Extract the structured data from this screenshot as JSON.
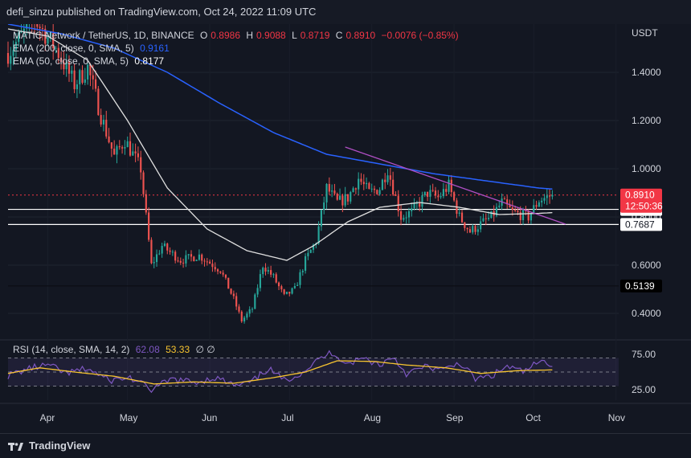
{
  "header": {
    "publisher": "defi_sinzu published on TradingView.com, Oct 24, 2022 11:09 UTC"
  },
  "legend": {
    "symbol": "MATIC Network / TetherUS, 1D, BINANCE",
    "open_label": "O",
    "open": "0.8986",
    "high_label": "H",
    "high": "0.9088",
    "low_label": "L",
    "low": "0.8719",
    "close_label": "C",
    "close": "0.8910",
    "change": "−0.0076 (−0.85%)",
    "ema200_label": "EMA (200, close, 0, SMA, 5)",
    "ema200_value": "0.9161",
    "ema50_label": "EMA (50, close, 0, SMA, 5)",
    "ema50_value": "0.8177",
    "rsi_label": "RSI (14, close, SMA, 14, 2)",
    "rsi_value": "62.08",
    "rsi_sma_value": "53.33",
    "rsi_extra": "∅ ∅"
  },
  "footer": {
    "brand": "TradingView"
  },
  "colors": {
    "background": "#131722",
    "up": "#26a69a",
    "down": "#ef5350",
    "ema200": "#2962ff",
    "ema50": "#e0e0e0",
    "trendline": "#b04fc4",
    "rsi": "#7e57c2",
    "rsi_sma": "#f7c430",
    "price_tag": "#f23645"
  },
  "chart_data": {
    "type": "candlestick",
    "currency_label": "USDT",
    "price_axis": {
      "min": 0.3,
      "max": 1.6,
      "ticks": [
        "1.4000",
        "1.2000",
        "1.0000",
        "0.8000",
        "0.6000",
        "0.4000"
      ]
    },
    "time_axis": {
      "labels": [
        "Apr",
        "May",
        "Jun",
        "Jul",
        "Aug",
        "Sep",
        "Oct",
        "Nov"
      ]
    },
    "anchors": [
      {
        "d": 0,
        "p": 1.48
      },
      {
        "d": 5,
        "p": 1.55
      },
      {
        "d": 10,
        "p": 1.62
      },
      {
        "d": 18,
        "p": 1.5
      },
      {
        "d": 25,
        "p": 1.35
      },
      {
        "d": 30,
        "p": 1.42
      },
      {
        "d": 35,
        "p": 1.22
      },
      {
        "d": 40,
        "p": 1.05
      },
      {
        "d": 44,
        "p": 1.12
      },
      {
        "d": 50,
        "p": 1.0
      },
      {
        "d": 54,
        "p": 0.6
      },
      {
        "d": 58,
        "p": 0.68
      },
      {
        "d": 65,
        "p": 0.62
      },
      {
        "d": 72,
        "p": 0.64
      },
      {
        "d": 80,
        "p": 0.58
      },
      {
        "d": 85,
        "p": 0.46
      },
      {
        "d": 88,
        "p": 0.37
      },
      {
        "d": 92,
        "p": 0.42
      },
      {
        "d": 96,
        "p": 0.6
      },
      {
        "d": 100,
        "p": 0.55
      },
      {
        "d": 104,
        "p": 0.47
      },
      {
        "d": 108,
        "p": 0.5
      },
      {
        "d": 112,
        "p": 0.62
      },
      {
        "d": 116,
        "p": 0.7
      },
      {
        "d": 120,
        "p": 0.92
      },
      {
        "d": 124,
        "p": 0.86
      },
      {
        "d": 128,
        "p": 0.88
      },
      {
        "d": 132,
        "p": 0.96
      },
      {
        "d": 136,
        "p": 0.9
      },
      {
        "d": 140,
        "p": 0.92
      },
      {
        "d": 143,
        "p": 1.0
      },
      {
        "d": 148,
        "p": 0.8
      },
      {
        "d": 152,
        "p": 0.82
      },
      {
        "d": 158,
        "p": 0.9
      },
      {
        "d": 162,
        "p": 0.88
      },
      {
        "d": 166,
        "p": 0.93
      },
      {
        "d": 170,
        "p": 0.8
      },
      {
        "d": 174,
        "p": 0.74
      },
      {
        "d": 178,
        "p": 0.77
      },
      {
        "d": 182,
        "p": 0.8
      },
      {
        "d": 186,
        "p": 0.86
      },
      {
        "d": 190,
        "p": 0.82
      },
      {
        "d": 196,
        "p": 0.8
      },
      {
        "d": 200,
        "p": 0.87
      },
      {
        "d": 205,
        "p": 0.891
      }
    ],
    "ema200_points": [
      {
        "d": 0,
        "p": 1.6
      },
      {
        "d": 20,
        "p": 1.56
      },
      {
        "d": 40,
        "p": 1.5
      },
      {
        "d": 60,
        "p": 1.4
      },
      {
        "d": 80,
        "p": 1.27
      },
      {
        "d": 100,
        "p": 1.15
      },
      {
        "d": 120,
        "p": 1.06
      },
      {
        "d": 140,
        "p": 1.02
      },
      {
        "d": 160,
        "p": 0.98
      },
      {
        "d": 180,
        "p": 0.95
      },
      {
        "d": 200,
        "p": 0.92
      },
      {
        "d": 205,
        "p": 0.916
      }
    ],
    "ema50_points": [
      {
        "d": 0,
        "p": 1.58
      },
      {
        "d": 15,
        "p": 1.55
      },
      {
        "d": 30,
        "p": 1.45
      },
      {
        "d": 45,
        "p": 1.2
      },
      {
        "d": 60,
        "p": 0.92
      },
      {
        "d": 75,
        "p": 0.75
      },
      {
        "d": 90,
        "p": 0.66
      },
      {
        "d": 105,
        "p": 0.62
      },
      {
        "d": 115,
        "p": 0.68
      },
      {
        "d": 128,
        "p": 0.78
      },
      {
        "d": 140,
        "p": 0.84
      },
      {
        "d": 155,
        "p": 0.86
      },
      {
        "d": 170,
        "p": 0.84
      },
      {
        "d": 185,
        "p": 0.81
      },
      {
        "d": 200,
        "p": 0.815
      },
      {
        "d": 205,
        "p": 0.818
      }
    ],
    "trendline": [
      {
        "d": 127,
        "p": 1.09
      },
      {
        "d": 210,
        "p": 0.77
      }
    ],
    "horizontal_levels": [
      {
        "price": 0.8314,
        "label": "0.8314",
        "color": "#ffffff",
        "dashed": false
      },
      {
        "price": 0.7687,
        "label": "0.7687",
        "color": "#ffffff",
        "dashed": false
      },
      {
        "price": 0.5139,
        "label": "0.5139",
        "color": "#000000",
        "dashed": false
      },
      {
        "price": 0.891,
        "label": "0.8910",
        "color": "#f23645",
        "dashed": true
      }
    ],
    "countdown": "12:50:36",
    "rsi": {
      "min": 10,
      "max": 90,
      "ticks": [
        "75.00",
        "25.00"
      ],
      "band_upper": 70,
      "band_lower": 30,
      "mid": 50,
      "anchors": [
        {
          "d": 0,
          "v": 45
        },
        {
          "d": 8,
          "v": 55
        },
        {
          "d": 15,
          "v": 60
        },
        {
          "d": 22,
          "v": 48
        },
        {
          "d": 30,
          "v": 55
        },
        {
          "d": 38,
          "v": 38
        },
        {
          "d": 46,
          "v": 42
        },
        {
          "d": 54,
          "v": 25
        },
        {
          "d": 62,
          "v": 40
        },
        {
          "d": 70,
          "v": 35
        },
        {
          "d": 78,
          "v": 42
        },
        {
          "d": 86,
          "v": 30
        },
        {
          "d": 92,
          "v": 36
        },
        {
          "d": 98,
          "v": 55
        },
        {
          "d": 104,
          "v": 38
        },
        {
          "d": 110,
          "v": 48
        },
        {
          "d": 118,
          "v": 70
        },
        {
          "d": 122,
          "v": 78
        },
        {
          "d": 128,
          "v": 62
        },
        {
          "d": 134,
          "v": 70
        },
        {
          "d": 140,
          "v": 60
        },
        {
          "d": 145,
          "v": 72
        },
        {
          "d": 150,
          "v": 48
        },
        {
          "d": 158,
          "v": 58
        },
        {
          "d": 164,
          "v": 52
        },
        {
          "d": 170,
          "v": 64
        },
        {
          "d": 176,
          "v": 40
        },
        {
          "d": 182,
          "v": 44
        },
        {
          "d": 188,
          "v": 58
        },
        {
          "d": 194,
          "v": 50
        },
        {
          "d": 200,
          "v": 64
        },
        {
          "d": 205,
          "v": 62
        }
      ],
      "sma_anchors": [
        {
          "d": 0,
          "v": 48
        },
        {
          "d": 12,
          "v": 56
        },
        {
          "d": 25,
          "v": 50
        },
        {
          "d": 40,
          "v": 44
        },
        {
          "d": 55,
          "v": 33
        },
        {
          "d": 70,
          "v": 36
        },
        {
          "d": 85,
          "v": 34
        },
        {
          "d": 100,
          "v": 42
        },
        {
          "d": 112,
          "v": 50
        },
        {
          "d": 124,
          "v": 66
        },
        {
          "d": 138,
          "v": 65
        },
        {
          "d": 150,
          "v": 60
        },
        {
          "d": 165,
          "v": 56
        },
        {
          "d": 178,
          "v": 48
        },
        {
          "d": 192,
          "v": 52
        },
        {
          "d": 205,
          "v": 53
        }
      ]
    }
  }
}
